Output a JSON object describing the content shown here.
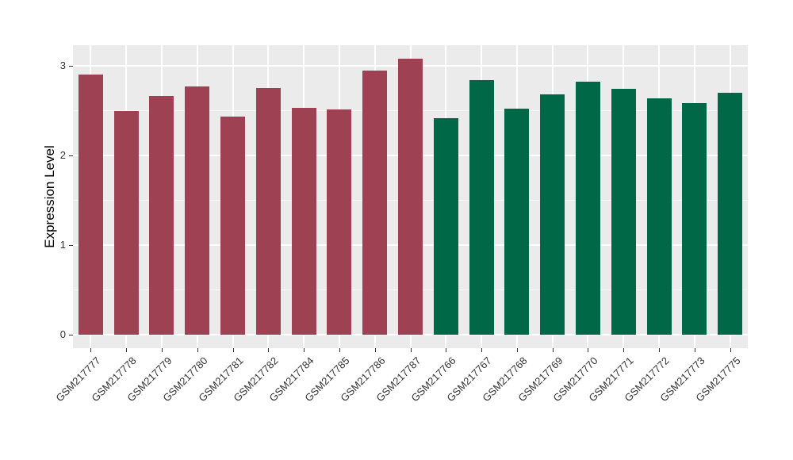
{
  "chart_data": {
    "type": "bar",
    "title": "",
    "xlabel": "",
    "ylabel": "Expression Level",
    "categories": [
      "GSM217777",
      "GSM217778",
      "GSM217779",
      "GSM217780",
      "GSM217781",
      "GSM217782",
      "GSM217784",
      "GSM217785",
      "GSM217786",
      "GSM217787",
      "GSM217766",
      "GSM217767",
      "GSM217768",
      "GSM217769",
      "GSM217770",
      "GSM217771",
      "GSM217772",
      "GSM217773",
      "GSM217775"
    ],
    "values": [
      2.9,
      2.5,
      2.66,
      2.77,
      2.43,
      2.75,
      2.53,
      2.51,
      2.95,
      3.08,
      2.42,
      2.84,
      2.52,
      2.68,
      2.82,
      2.74,
      2.64,
      2.58,
      2.7
    ],
    "groups": [
      "group1",
      "group1",
      "group1",
      "group1",
      "group1",
      "group1",
      "group1",
      "group1",
      "group1",
      "group1",
      "group2",
      "group2",
      "group2",
      "group2",
      "group2",
      "group2",
      "group2",
      "group2",
      "group2"
    ],
    "group_colors": {
      "group1": "#9E4253",
      "group2": "#006747"
    },
    "yticks": [
      0,
      1,
      2,
      3
    ],
    "minor_yticks": [
      0.5,
      1.5,
      2.5
    ],
    "ylim": [
      -0.15,
      3.23
    ],
    "grid": true,
    "legend_position": "none",
    "panel_background": "#EBEBEB",
    "grid_color": "#FFFFFF",
    "axis_text_color": "#333333",
    "x_tick_angle_degrees": 45
  }
}
